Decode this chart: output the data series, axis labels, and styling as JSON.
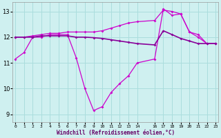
{
  "xlabel": "Windchill (Refroidissement éolien,°C)",
  "background_color": "#cff0f0",
  "grid_color": "#aadddd",
  "line_color1": "#cc00cc",
  "line_color2": "#880099",
  "line_color3": "#aa00aa",
  "ylim": [
    8.7,
    13.35
  ],
  "xlim": [
    -0.3,
    23.3
  ],
  "yticks": [
    9,
    10,
    11,
    12,
    13
  ],
  "xticks": [
    0,
    1,
    2,
    3,
    4,
    5,
    6,
    7,
    8,
    9,
    10,
    11,
    12,
    13,
    14,
    16,
    17,
    18,
    19,
    20,
    21,
    22,
    23
  ],
  "series1_x": [
    0,
    1,
    2,
    3,
    4,
    5,
    6,
    7,
    8,
    9,
    10,
    11,
    12,
    13,
    14,
    16,
    17,
    18,
    19,
    20,
    21,
    22,
    23
  ],
  "series1_y": [
    11.15,
    11.4,
    12.0,
    12.0,
    12.1,
    12.1,
    12.1,
    11.2,
    10.0,
    9.15,
    9.3,
    9.85,
    10.2,
    10.5,
    11.0,
    11.15,
    13.1,
    12.85,
    12.9,
    12.2,
    12.0,
    11.75,
    11.75
  ],
  "series2_x": [
    0,
    1,
    2,
    3,
    4,
    5,
    6,
    7,
    8,
    9,
    10,
    11,
    12,
    13,
    14,
    16,
    17,
    18,
    19,
    20,
    21,
    22,
    23
  ],
  "series2_y": [
    12.0,
    12.0,
    12.05,
    12.1,
    12.15,
    12.15,
    12.2,
    12.2,
    12.2,
    12.2,
    12.25,
    12.35,
    12.45,
    12.55,
    12.6,
    12.65,
    13.05,
    13.0,
    12.9,
    12.2,
    12.1,
    11.75,
    11.75
  ],
  "series3_x": [
    0,
    1,
    2,
    3,
    4,
    5,
    6,
    7,
    8,
    9,
    10,
    11,
    12,
    13,
    14,
    16,
    17,
    18,
    19,
    20,
    21,
    22,
    23
  ],
  "series3_y": [
    12.0,
    12.0,
    12.0,
    12.05,
    12.05,
    12.05,
    12.05,
    12.0,
    12.0,
    11.98,
    11.95,
    11.9,
    11.85,
    11.8,
    11.75,
    11.7,
    12.25,
    12.1,
    11.95,
    11.85,
    11.75,
    11.75,
    11.75
  ]
}
